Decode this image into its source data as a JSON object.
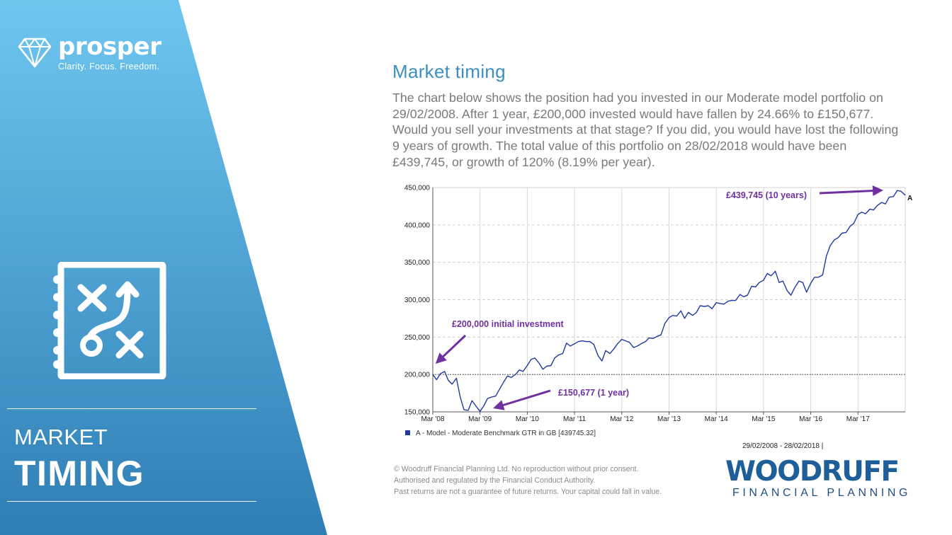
{
  "sidebar": {
    "brand_name": "prosper",
    "brand_tagline": "Clarity. Focus. Freedom.",
    "section_kicker": "MARKET",
    "section_heading": "TIMING",
    "icons": [
      "diamond-icon",
      "strategy-play-icon"
    ],
    "gradient": [
      "#6ec6ef",
      "#2f7eb5"
    ]
  },
  "content": {
    "title": "Market timing",
    "intro": "The chart below shows the position had you invested in our Moderate model portfolio on 29/02/2008. After 1 year, £200,000 invested would have fallen by 24.66% to £150,677. Would you sell your investments at that stage? If you did, you would have lost the following 9 years of growth. The total value of this portfolio on 28/02/2018 would have been £439,745, or growth of 120% (8.19% per year).",
    "title_color": "#3b8fc2",
    "legend_label": "A - Model - Moderate Benchmark GTR in GB [439745.32]",
    "date_range": "29/02/2008 - 28/02/2018 |",
    "disclaimer": [
      "© Woodruff Financial Planning Ltd. No reproduction without prior consent.",
      "Authorised and regulated by the Financial Conduct Authority.",
      "Past returns are not a guarantee of future returns. Your capital could fall in value."
    ]
  },
  "footer": {
    "logo_main": "WOODRUFF",
    "logo_sub": "FINANCIAL PLANNING"
  },
  "chart_data": {
    "type": "line",
    "series_color": "#1f3a9e",
    "annotation_color": "#7030a0",
    "ylim": [
      150000,
      450000
    ],
    "yticks": [
      {
        "v": 150000,
        "label": "150,000"
      },
      {
        "v": 200000,
        "label": "200,000"
      },
      {
        "v": 250000,
        "label": "250,000"
      },
      {
        "v": 300000,
        "label": "300,000"
      },
      {
        "v": 350000,
        "label": "350,000"
      },
      {
        "v": 400000,
        "label": "400,000"
      },
      {
        "v": 450000,
        "label": "450,000"
      }
    ],
    "xlim": [
      2008.17,
      2018.17
    ],
    "xticks": [
      {
        "v": 2008.17,
        "label": "Mar '08"
      },
      {
        "v": 2009.17,
        "label": "Mar '09"
      },
      {
        "v": 2010.17,
        "label": "Mar '10"
      },
      {
        "v": 2011.17,
        "label": "Mar '11"
      },
      {
        "v": 2012.17,
        "label": "Mar '12"
      },
      {
        "v": 2013.17,
        "label": "Mar '13"
      },
      {
        "v": 2014.17,
        "label": "Mar '14"
      },
      {
        "v": 2015.17,
        "label": "Mar '15"
      },
      {
        "v": 2016.17,
        "label": "Mar '16"
      },
      {
        "v": 2017.17,
        "label": "Mar '17"
      }
    ],
    "baseline": 200000,
    "series_end_label": "A",
    "series": [
      {
        "values": [
          [
            2008.17,
            200000
          ],
          [
            2008.25,
            193000
          ],
          [
            2008.33,
            201000
          ],
          [
            2008.42,
            204000
          ],
          [
            2008.5,
            192000
          ],
          [
            2008.58,
            187000
          ],
          [
            2008.67,
            195000
          ],
          [
            2008.75,
            170000
          ],
          [
            2008.83,
            153000
          ],
          [
            2008.92,
            152000
          ],
          [
            2009.0,
            165000
          ],
          [
            2009.08,
            158000
          ],
          [
            2009.17,
            150677
          ],
          [
            2009.25,
            158000
          ],
          [
            2009.33,
            168000
          ],
          [
            2009.42,
            170000
          ],
          [
            2009.5,
            171000
          ],
          [
            2009.58,
            180000
          ],
          [
            2009.67,
            190000
          ],
          [
            2009.75,
            198000
          ],
          [
            2009.83,
            196000
          ],
          [
            2009.92,
            200000
          ],
          [
            2010.0,
            206000
          ],
          [
            2010.08,
            204000
          ],
          [
            2010.17,
            212000
          ],
          [
            2010.25,
            220000
          ],
          [
            2010.33,
            222000
          ],
          [
            2010.42,
            215000
          ],
          [
            2010.5,
            207000
          ],
          [
            2010.58,
            211000
          ],
          [
            2010.67,
            212000
          ],
          [
            2010.75,
            222000
          ],
          [
            2010.83,
            226000
          ],
          [
            2010.92,
            228000
          ],
          [
            2011.0,
            242000
          ],
          [
            2011.08,
            238000
          ],
          [
            2011.17,
            241000
          ],
          [
            2011.25,
            244000
          ],
          [
            2011.33,
            245000
          ],
          [
            2011.42,
            244000
          ],
          [
            2011.5,
            244000
          ],
          [
            2011.58,
            240000
          ],
          [
            2011.67,
            225000
          ],
          [
            2011.75,
            218000
          ],
          [
            2011.83,
            232000
          ],
          [
            2011.92,
            228000
          ],
          [
            2012.0,
            234000
          ],
          [
            2012.08,
            241000
          ],
          [
            2012.17,
            247000
          ],
          [
            2012.25,
            245000
          ],
          [
            2012.33,
            243000
          ],
          [
            2012.42,
            236000
          ],
          [
            2012.5,
            238000
          ],
          [
            2012.58,
            241000
          ],
          [
            2012.67,
            244000
          ],
          [
            2012.75,
            249000
          ],
          [
            2012.83,
            248000
          ],
          [
            2012.92,
            251000
          ],
          [
            2013.0,
            253000
          ],
          [
            2013.08,
            268000
          ],
          [
            2013.17,
            276000
          ],
          [
            2013.25,
            279000
          ],
          [
            2013.33,
            278000
          ],
          [
            2013.42,
            285000
          ],
          [
            2013.5,
            275000
          ],
          [
            2013.58,
            283000
          ],
          [
            2013.67,
            279000
          ],
          [
            2013.75,
            283000
          ],
          [
            2013.83,
            292000
          ],
          [
            2013.92,
            291000
          ],
          [
            2014.0,
            292000
          ],
          [
            2014.08,
            288000
          ],
          [
            2014.17,
            296000
          ],
          [
            2014.25,
            295000
          ],
          [
            2014.33,
            294000
          ],
          [
            2014.42,
            298000
          ],
          [
            2014.5,
            299000
          ],
          [
            2014.58,
            299000
          ],
          [
            2014.67,
            307000
          ],
          [
            2014.75,
            304000
          ],
          [
            2014.83,
            306000
          ],
          [
            2014.92,
            318000
          ],
          [
            2015.0,
            317000
          ],
          [
            2015.08,
            323000
          ],
          [
            2015.17,
            326000
          ],
          [
            2015.25,
            335000
          ],
          [
            2015.33,
            332000
          ],
          [
            2015.42,
            338000
          ],
          [
            2015.5,
            323000
          ],
          [
            2015.58,
            325000
          ],
          [
            2015.67,
            312000
          ],
          [
            2015.75,
            306000
          ],
          [
            2015.83,
            316000
          ],
          [
            2015.92,
            325000
          ],
          [
            2016.0,
            323000
          ],
          [
            2016.08,
            310000
          ],
          [
            2016.17,
            322000
          ],
          [
            2016.25,
            330000
          ],
          [
            2016.33,
            330000
          ],
          [
            2016.42,
            333000
          ],
          [
            2016.5,
            358000
          ],
          [
            2016.58,
            372000
          ],
          [
            2016.67,
            380000
          ],
          [
            2016.75,
            383000
          ],
          [
            2016.83,
            389000
          ],
          [
            2016.92,
            390000
          ],
          [
            2017.0,
            398000
          ],
          [
            2017.08,
            402000
          ],
          [
            2017.17,
            414000
          ],
          [
            2017.25,
            417000
          ],
          [
            2017.33,
            415000
          ],
          [
            2017.42,
            421000
          ],
          [
            2017.5,
            420000
          ],
          [
            2017.58,
            426000
          ],
          [
            2017.67,
            430000
          ],
          [
            2017.75,
            428000
          ],
          [
            2017.83,
            437000
          ],
          [
            2017.92,
            438000
          ],
          [
            2018.0,
            446000
          ],
          [
            2018.08,
            445000
          ],
          [
            2018.17,
            439745
          ]
        ]
      }
    ],
    "annotations": [
      {
        "text": "£439,745  (10 years)"
      },
      {
        "text": "£200,000  initial investment"
      },
      {
        "text": "£150,677  (1 year)"
      }
    ]
  }
}
